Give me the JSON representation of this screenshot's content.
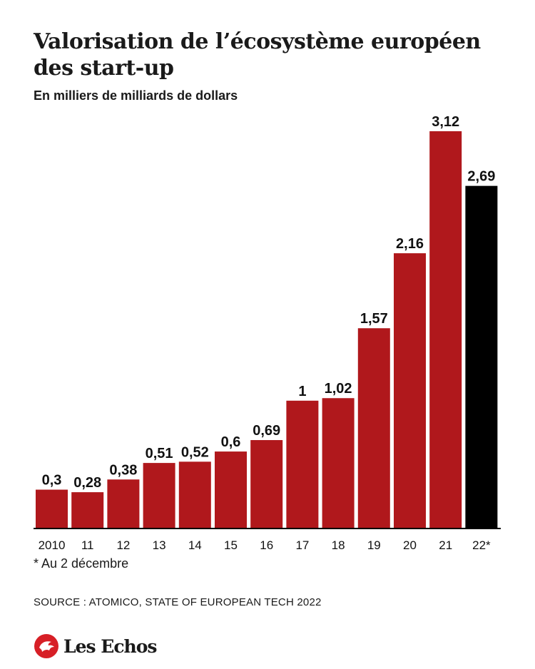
{
  "header": {
    "title": "Valorisation de l’écosystème européen des start-up",
    "subtitle": "En milliers de milliards de dollars"
  },
  "chart_data": {
    "type": "bar",
    "categories": [
      "2010",
      "11",
      "12",
      "13",
      "14",
      "15",
      "16",
      "17",
      "18",
      "19",
      "20",
      "21",
      "22*"
    ],
    "values": [
      0.3,
      0.28,
      0.38,
      0.51,
      0.52,
      0.6,
      0.69,
      1,
      1.02,
      1.57,
      2.16,
      3.12,
      2.69
    ],
    "data_labels": [
      "0,3",
      "0,28",
      "0,38",
      "0,51",
      "0,52",
      "0,6",
      "0,69",
      "1",
      "1,02",
      "1,57",
      "2,16",
      "3,12",
      "2,69"
    ],
    "title": "Valorisation de l’écosystème européen des start-up",
    "subtitle": "En milliers de milliards de dollars",
    "xlabel": "",
    "ylabel": "",
    "ylim": [
      0,
      3.12
    ],
    "grid": false,
    "legend": "none",
    "colors": {
      "bar": "#b0181c",
      "highlight": "#000000",
      "axis": "#000000"
    },
    "highlight_index": 12
  },
  "footer": {
    "footnote": "* Au 2 décembre",
    "source": "SOURCE : ATOMICO, STATE OF EUROPEAN TECH 2022"
  },
  "brand": {
    "name": "Les Echos",
    "icon": "les-echos-logo-icon",
    "color": "#d71f26"
  }
}
